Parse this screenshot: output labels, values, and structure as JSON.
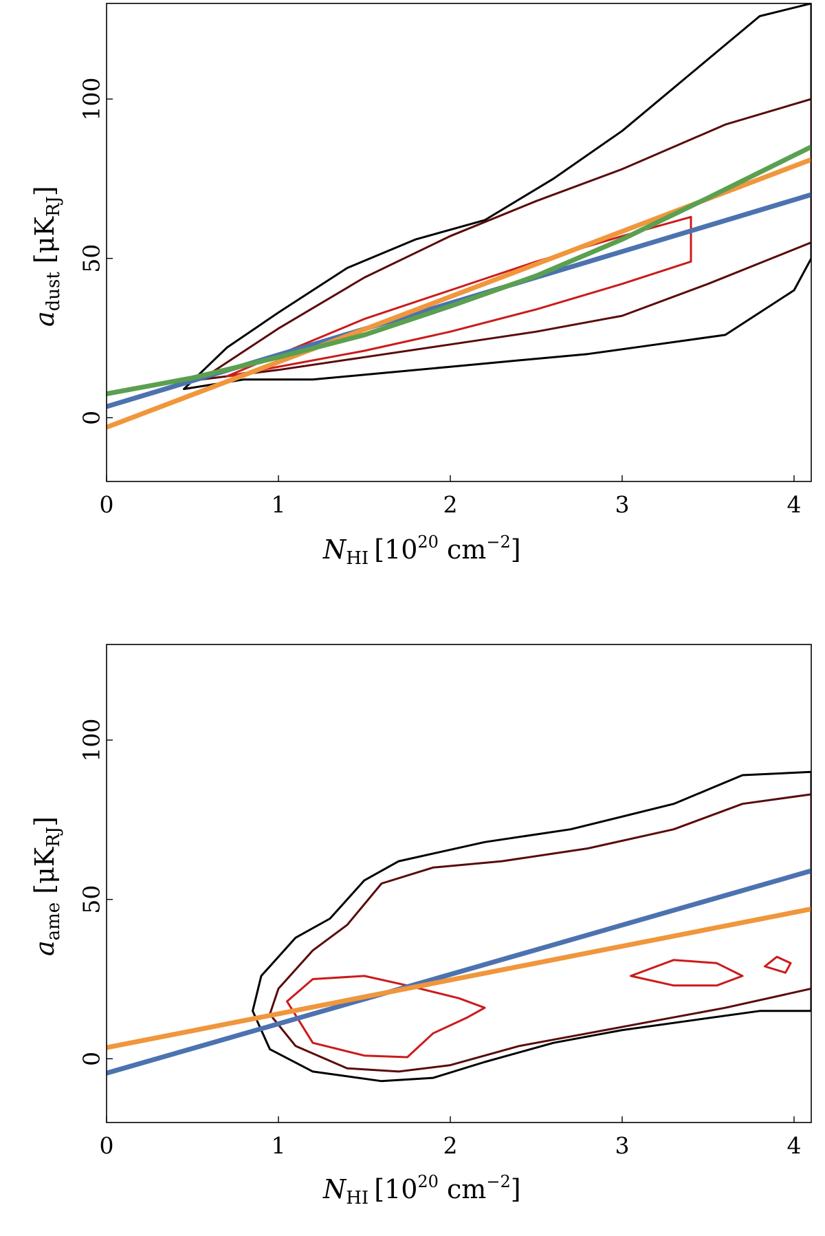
{
  "chart_data": [
    {
      "type": "line",
      "panel": "top",
      "title": "",
      "xlabel": {
        "main": "N",
        "sub": "HI",
        "bracket": "[10",
        "sup": "20",
        "unit": " cm",
        "unit_sup": "−2",
        "close": "]"
      },
      "ylabel": {
        "main": "a",
        "sub": "dust",
        "unit_open": " [μK",
        "unit_sub": "RJ",
        "unit_close": "]"
      },
      "xlim": [
        0,
        4.1
      ],
      "ylim": [
        -20,
        130
      ],
      "xticks": [
        0,
        1,
        2,
        3,
        4
      ],
      "xtick_labels": [
        "0",
        "1",
        "2",
        "3",
        "4"
      ],
      "yticks": [
        0,
        50,
        100
      ],
      "ytick_labels": [
        "0",
        "50",
        "100"
      ],
      "grid": false,
      "series": [
        {
          "color": "#4c72b0",
          "kind": "linear",
          "x": [
            0,
            4.1
          ],
          "y": [
            3.5,
            70
          ]
        },
        {
          "color": "#f0963c",
          "kind": "linear",
          "x": [
            0,
            4.1
          ],
          "y": [
            -3,
            81
          ]
        },
        {
          "color": "#5aa050",
          "kind": "curve",
          "x": [
            0,
            0.5,
            1,
            1.5,
            2,
            2.5,
            3,
            3.5,
            4.1
          ],
          "y": [
            7.5,
            12.5,
            19,
            26,
            35,
            44.5,
            56,
            69,
            85
          ]
        }
      ],
      "contours": [
        {
          "level": "outer",
          "color": "#000000",
          "x": [
            0.45,
            0.8,
            1.2,
            1.6,
            2.0,
            2.4,
            2.8,
            3.2,
            3.6,
            4.0,
            4.1,
            4.1,
            3.8,
            3.4,
            3.0,
            2.6,
            2.2,
            1.8,
            1.4,
            1.0,
            0.7,
            0.45
          ],
          "y": [
            9,
            12,
            12,
            14,
            16,
            18,
            20,
            23,
            26,
            40,
            50,
            130,
            126,
            108,
            90,
            75,
            62,
            56,
            47,
            33,
            22,
            9
          ]
        },
        {
          "level": "middle",
          "color": "#5a0a0a",
          "x": [
            0.55,
            1.0,
            1.5,
            2.0,
            2.5,
            3.0,
            3.5,
            4.1,
            4.1,
            3.6,
            3.0,
            2.5,
            2.0,
            1.5,
            1.0,
            0.55
          ],
          "y": [
            12,
            15,
            19,
            23,
            27,
            32,
            42,
            55,
            100,
            92,
            78,
            68,
            57,
            44,
            28,
            12
          ]
        },
        {
          "level": "inner",
          "color": "#cc1a1a",
          "x": [
            0.7,
            1.1,
            1.5,
            2.0,
            2.5,
            3.0,
            3.4,
            3.4,
            3.0,
            2.5,
            2.0,
            1.5,
            1.1,
            0.7
          ],
          "y": [
            13,
            17,
            21,
            27,
            34,
            42,
            49,
            63,
            57,
            49,
            40,
            31,
            22,
            13
          ]
        }
      ]
    },
    {
      "type": "line",
      "panel": "bottom",
      "title": "",
      "xlabel": {
        "main": "N",
        "sub": "HI",
        "bracket": "[10",
        "sup": "20",
        "unit": " cm",
        "unit_sup": "−2",
        "close": "]"
      },
      "ylabel": {
        "main": "a",
        "sub": "ame",
        "unit_open": " [μK",
        "unit_sub": "RJ",
        "unit_close": "]"
      },
      "xlim": [
        0,
        4.1
      ],
      "ylim": [
        -20,
        130
      ],
      "xticks": [
        0,
        1,
        2,
        3,
        4
      ],
      "xtick_labels": [
        "0",
        "1",
        "2",
        "3",
        "4"
      ],
      "yticks": [
        0,
        50,
        100
      ],
      "ytick_labels": [
        "0",
        "50",
        "100"
      ],
      "grid": false,
      "series": [
        {
          "color": "#4c72b0",
          "kind": "linear",
          "x": [
            0,
            4.1
          ],
          "y": [
            -4.5,
            59
          ]
        },
        {
          "color": "#f0963c",
          "kind": "linear",
          "x": [
            0,
            4.1
          ],
          "y": [
            3.5,
            47
          ]
        }
      ],
      "contours": [
        {
          "level": "outer",
          "color": "#000000",
          "x": [
            0.85,
            0.95,
            1.2,
            1.6,
            1.9,
            2.2,
            2.6,
            3.0,
            3.4,
            3.8,
            4.1,
            4.1,
            3.7,
            3.3,
            2.7,
            2.2,
            1.7,
            1.5,
            1.3,
            1.1,
            0.9,
            0.85
          ],
          "y": [
            15,
            3,
            -4,
            -7,
            -6,
            -1,
            5,
            9,
            12,
            15,
            15,
            90,
            89,
            80,
            72,
            68,
            62,
            56,
            44,
            38,
            26,
            15
          ]
        },
        {
          "level": "middle",
          "color": "#5a0a0a",
          "x": [
            0.95,
            1.1,
            1.4,
            1.7,
            2.0,
            2.4,
            2.8,
            3.2,
            3.6,
            4.1,
            4.1,
            3.7,
            3.3,
            2.8,
            2.3,
            1.9,
            1.6,
            1.4,
            1.2,
            1.0,
            0.95
          ],
          "y": [
            14,
            4,
            -3,
            -4,
            -2,
            4,
            8,
            12,
            16,
            22,
            83,
            80,
            72,
            66,
            62,
            60,
            55,
            42,
            34,
            22,
            14
          ]
        },
        {
          "level": "inner-a",
          "color": "#cc1a1a",
          "x": [
            1.05,
            1.2,
            1.5,
            1.75,
            1.9,
            2.1,
            2.2,
            2.05,
            1.75,
            1.5,
            1.2,
            1.05
          ],
          "y": [
            18,
            5,
            1,
            0.5,
            8,
            13,
            16,
            19,
            23,
            26,
            25,
            18
          ]
        },
        {
          "level": "inner-b",
          "color": "#cc1a1a",
          "x": [
            3.05,
            3.3,
            3.55,
            3.7,
            3.55,
            3.3,
            3.05
          ],
          "y": [
            26,
            23,
            23,
            26,
            30,
            31,
            26
          ]
        },
        {
          "level": "inner-c",
          "color": "#cc1a1a",
          "x": [
            3.83,
            3.95,
            3.98,
            3.9,
            3.83
          ],
          "y": [
            29,
            27,
            30,
            32,
            29
          ]
        }
      ]
    }
  ]
}
